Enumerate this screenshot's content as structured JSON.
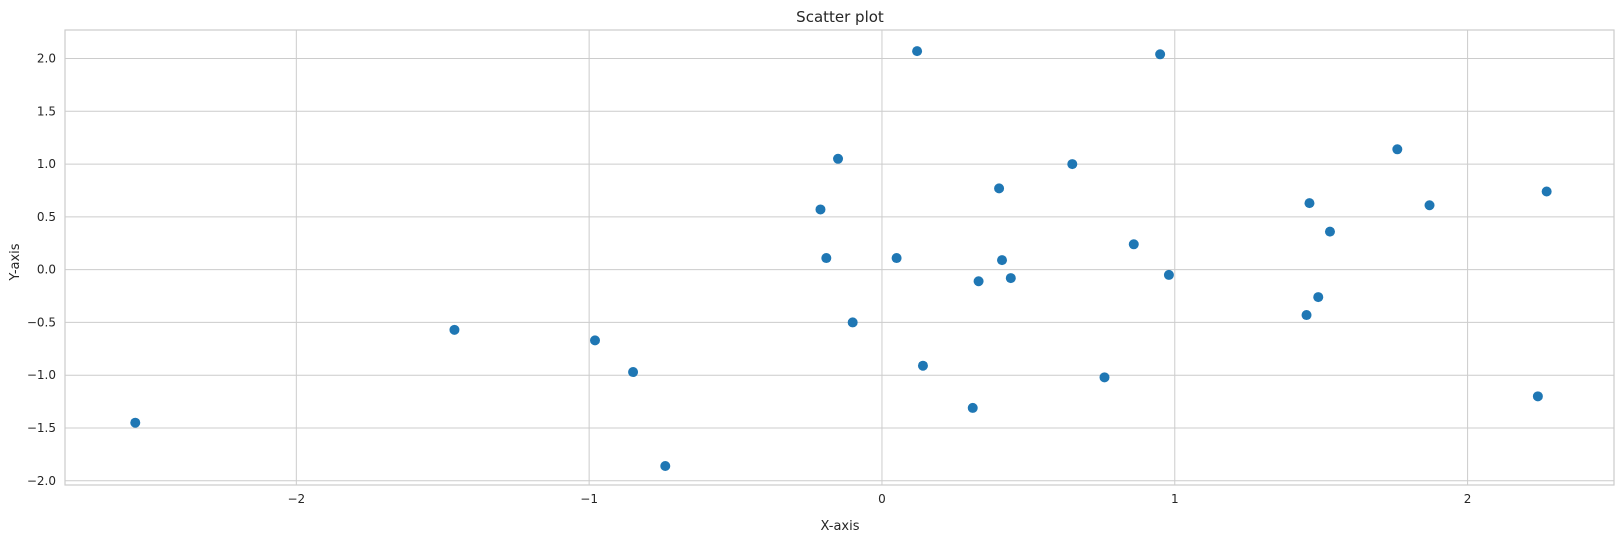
{
  "chart_data": {
    "type": "scatter",
    "title": "Scatter plot",
    "xlabel": "X-axis",
    "ylabel": "Y-axis",
    "xlim": [
      -2.79,
      2.5
    ],
    "ylim": [
      -2.04,
      2.27
    ],
    "grid": true,
    "marker_color": "#1f77b4",
    "x_ticks": [
      -2,
      -1,
      0,
      1,
      2
    ],
    "x_tick_labels": [
      "−2",
      "−1",
      "0",
      "1",
      "2"
    ],
    "y_ticks": [
      2.0,
      1.5,
      1.0,
      0.5,
      0.0,
      -0.5,
      -1.0,
      -1.5,
      -2.0
    ],
    "y_tick_labels": [
      "2.0",
      "1.5",
      "1.0",
      "0.5",
      "0.0",
      "−0.5",
      "−1.0",
      "−1.5",
      "−2.0"
    ],
    "points": [
      {
        "x": -2.55,
        "y": -1.45
      },
      {
        "x": -1.46,
        "y": -0.57
      },
      {
        "x": -0.98,
        "y": -0.67
      },
      {
        "x": -0.85,
        "y": -0.97
      },
      {
        "x": -0.74,
        "y": -1.86
      },
      {
        "x": -0.21,
        "y": 0.57
      },
      {
        "x": -0.19,
        "y": 0.11
      },
      {
        "x": -0.15,
        "y": 1.05
      },
      {
        "x": -0.1,
        "y": -0.5
      },
      {
        "x": 0.05,
        "y": 0.11
      },
      {
        "x": 0.12,
        "y": 2.07
      },
      {
        "x": 0.14,
        "y": -0.91
      },
      {
        "x": 0.31,
        "y": -1.31
      },
      {
        "x": 0.33,
        "y": -0.11
      },
      {
        "x": 0.4,
        "y": 0.77
      },
      {
        "x": 0.41,
        "y": 0.09
      },
      {
        "x": 0.44,
        "y": -0.08
      },
      {
        "x": 0.65,
        "y": 1.0
      },
      {
        "x": 0.76,
        "y": -1.02
      },
      {
        "x": 0.86,
        "y": 0.24
      },
      {
        "x": 0.95,
        "y": 2.04
      },
      {
        "x": 0.98,
        "y": -0.05
      },
      {
        "x": 1.45,
        "y": -0.43
      },
      {
        "x": 1.46,
        "y": 0.63
      },
      {
        "x": 1.49,
        "y": -0.26
      },
      {
        "x": 1.53,
        "y": 0.36
      },
      {
        "x": 1.76,
        "y": 1.14
      },
      {
        "x": 1.87,
        "y": 0.61
      },
      {
        "x": 2.24,
        "y": -1.2
      },
      {
        "x": 2.27,
        "y": 0.74
      }
    ]
  }
}
